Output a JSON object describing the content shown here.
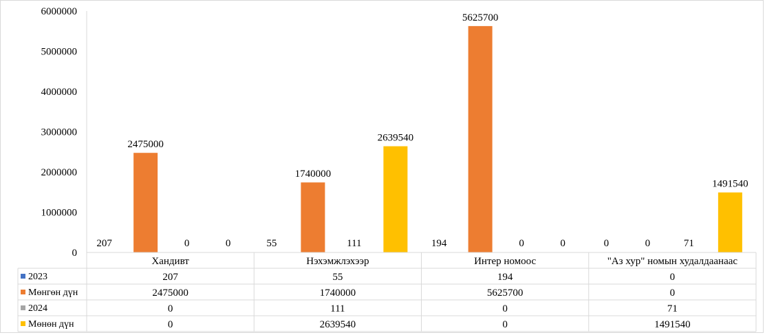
{
  "chart_data": {
    "type": "bar",
    "categories": [
      "Хандивт",
      "Нэхэмжлэхээр",
      "Интер номоос",
      "\"Аз хур\"  номын худалдаанаас"
    ],
    "series": [
      {
        "name": "2023",
        "color": "#4472C4",
        "values": [
          207,
          55,
          194,
          0
        ]
      },
      {
        "name": "Мөнгөн дүн",
        "color": "#ED7D31",
        "values": [
          2475000,
          1740000,
          5625700,
          0
        ]
      },
      {
        "name": "2024",
        "color": "#A5A5A5",
        "values": [
          0,
          111,
          0,
          71
        ]
      },
      {
        "name": "Мөнөн дүн",
        "color": "#FFC000",
        "values": [
          0,
          2639540,
          0,
          1491540
        ]
      }
    ],
    "y_ticks": [
      "0",
      "1000000",
      "2000000",
      "3000000",
      "4000000",
      "5000000",
      "6000000"
    ],
    "ylim": [
      0,
      6000000
    ],
    "grid": false,
    "data_table": true,
    "title": "",
    "xlabel": "",
    "ylabel": ""
  }
}
